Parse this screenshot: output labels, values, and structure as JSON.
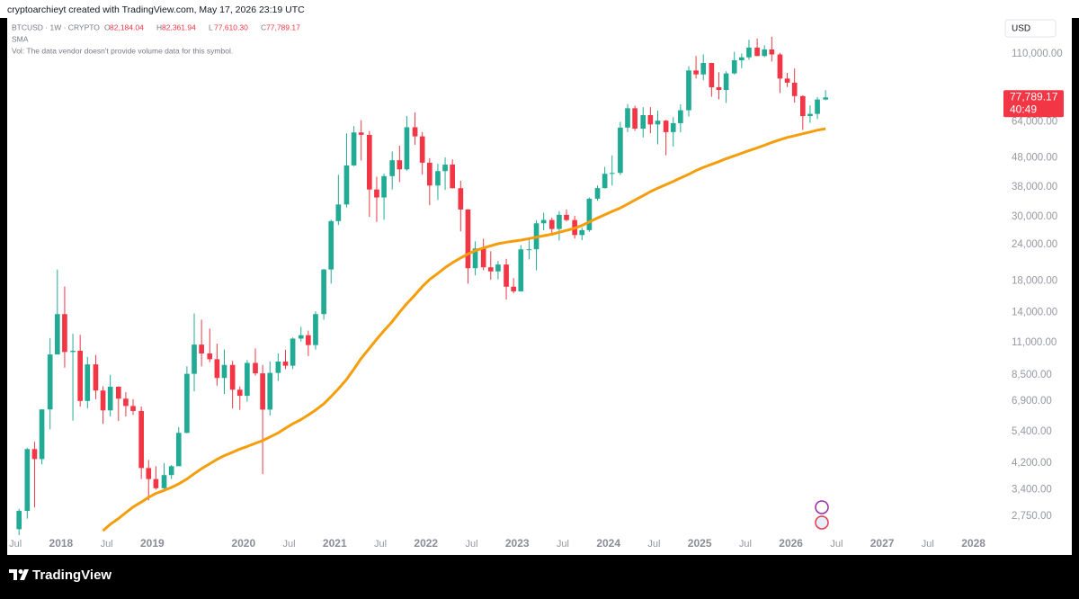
{
  "chart_data": {
    "type": "candlestick",
    "header": "cryptoarchieyt created with TradingView.com, May 17, 2026 23:19 UTC",
    "symbol": "BTCUSD · 1W · CRYPTO",
    "ohlc_legend": [
      {
        "label": "O",
        "value": "82,184.04"
      },
      {
        "label": "H",
        "value": "82,361.94"
      },
      {
        "label": "L",
        "value": "77,610.30"
      },
      {
        "label": "C",
        "value": "77,789.17"
      }
    ],
    "indicator": "SMA",
    "volume_note": "Vol: The data vendor doesn't provide volume data for this symbol.",
    "currency": "USD",
    "last_price": "77,789.17",
    "countdown": "40:49",
    "brand": "TradingView",
    "log_scale": true,
    "grid": false,
    "up_color": "#22ab94",
    "down_color": "#f23645",
    "x": [
      2017.54,
      2017.63,
      2017.71,
      2017.79,
      2017.88,
      2017.96,
      2018.04,
      2018.13,
      2018.21,
      2018.29,
      2018.38,
      2018.46,
      2018.54,
      2018.63,
      2018.71,
      2018.79,
      2018.88,
      2018.96,
      2019.04,
      2019.13,
      2019.21,
      2019.29,
      2019.38,
      2019.46,
      2019.54,
      2019.63,
      2019.71,
      2019.79,
      2019.88,
      2019.96,
      2020.04,
      2020.13,
      2020.21,
      2020.29,
      2020.38,
      2020.46,
      2020.54,
      2020.63,
      2020.71,
      2020.79,
      2020.88,
      2020.96,
      2021.04,
      2021.13,
      2021.21,
      2021.29,
      2021.38,
      2021.46,
      2021.54,
      2021.63,
      2021.71,
      2021.79,
      2021.88,
      2021.96,
      2022.04,
      2022.13,
      2022.21,
      2022.29,
      2022.38,
      2022.46,
      2022.54,
      2022.63,
      2022.71,
      2022.79,
      2022.88,
      2022.96,
      2023.04,
      2023.13,
      2023.21,
      2023.29,
      2023.38,
      2023.46,
      2023.54,
      2023.63,
      2023.71,
      2023.79,
      2023.88,
      2023.96,
      2024.04,
      2024.13,
      2024.21,
      2024.29,
      2024.38,
      2024.46,
      2024.54,
      2024.63,
      2024.71,
      2024.79,
      2024.88,
      2024.96,
      2025.04,
      2025.13,
      2025.21,
      2025.29,
      2025.38,
      2025.46,
      2025.54,
      2025.63,
      2025.71,
      2025.79,
      2025.88,
      2025.96,
      2026.04,
      2026.13,
      2026.21,
      2026.29,
      2026.38
    ],
    "open": [
      2480,
      2870,
      4700,
      4340,
      6450,
      10000,
      13800,
      10200,
      10300,
      6900,
      9240,
      7500,
      6400,
      7730,
      7030,
      6630,
      6370,
      4040,
      3700,
      3440,
      3820,
      4100,
      5350,
      8570,
      10820,
      10080,
      9630,
      8290,
      9200,
      7550,
      7190,
      9350,
      8600,
      6440,
      8630,
      9450,
      9140,
      11350,
      11660,
      10780,
      13800,
      19700,
      28990,
      33100,
      45200,
      58800,
      57700,
      37300,
      35000,
      41500,
      47100,
      43800,
      61300,
      57000,
      46200,
      38500,
      43200,
      45500,
      37700,
      31800,
      19900,
      23300,
      20050,
      19400,
      20500,
      17170,
      16550,
      23140,
      23150,
      28480,
      29250,
      27220,
      30480,
      29230,
      25940,
      26970,
      34660,
      37720,
      42280,
      42580,
      61130,
      71330,
      60640,
      67530,
      62680,
      64620,
      58970,
      63330,
      70220,
      96450,
      93430,
      102400,
      84350,
      82550,
      94200,
      104600,
      107100,
      115750,
      108250,
      114050,
      109600,
      90400,
      87500,
      78600,
      67000,
      68200,
      76500
    ],
    "high": [
      2920,
      4750,
      4980,
      6450,
      11400,
      19700,
      17200,
      11800,
      11700,
      9800,
      9960,
      7760,
      8500,
      7760,
      7400,
      7000,
      6600,
      4310,
      4100,
      4200,
      4140,
      5600,
      9100,
      13880,
      13200,
      12300,
      10900,
      10400,
      9500,
      7750,
      9570,
      10500,
      9200,
      9460,
      10080,
      10380,
      11450,
      12470,
      12100,
      14100,
      19800,
      29300,
      41950,
      58350,
      61800,
      64850,
      59500,
      41300,
      42300,
      50500,
      52900,
      67000,
      69000,
      59000,
      47900,
      45800,
      48200,
      47400,
      40000,
      31900,
      24650,
      25200,
      22800,
      21100,
      21450,
      18400,
      23950,
      25250,
      29200,
      31000,
      29800,
      31400,
      31800,
      30200,
      27500,
      35000,
      38500,
      44700,
      48950,
      64000,
      73800,
      72800,
      71950,
      71950,
      70000,
      65000,
      66500,
      73600,
      99800,
      108300,
      109600,
      102500,
      95000,
      95800,
      111900,
      110500,
      123200,
      124450,
      117900,
      126200,
      111000,
      94600,
      97900,
      79000,
      73000,
      78000,
      82400
    ],
    "low": [
      1840,
      2700,
      2950,
      4160,
      5500,
      10000,
      9000,
      5900,
      6600,
      6500,
      7000,
      5750,
      6100,
      5880,
      6100,
      6170,
      3700,
      3120,
      3400,
      3390,
      3700,
      4100,
      5330,
      7450,
      9100,
      9400,
      7800,
      7300,
      6500,
      6430,
      6860,
      8450,
      3850,
      6150,
      8100,
      8900,
      8900,
      11100,
      9870,
      10400,
      13200,
      17600,
      28100,
      32300,
      44950,
      47000,
      30000,
      28800,
      29300,
      37300,
      39600,
      43300,
      53300,
      42000,
      32900,
      34300,
      37200,
      37600,
      26700,
      17600,
      18800,
      19600,
      18150,
      18200,
      15500,
      16300,
      16500,
      21350,
      19550,
      26950,
      25800,
      24800,
      28900,
      25200,
      24900,
      26600,
      34100,
      37600,
      38500,
      41900,
      59000,
      59600,
      56500,
      58400,
      53500,
      49000,
      52550,
      58900,
      66800,
      90500,
      89200,
      78200,
      76600,
      74400,
      93400,
      98200,
      105100,
      108000,
      107300,
      103500,
      80600,
      84500,
      74600,
      60000,
      63500,
      65500,
      76000
    ],
    "close": [
      2870,
      4700,
      4340,
      6450,
      10000,
      13800,
      10200,
      10300,
      6900,
      9240,
      7500,
      6400,
      7730,
      7030,
      6630,
      6370,
      4040,
      3700,
      3440,
      3820,
      4100,
      5350,
      8570,
      10820,
      10080,
      9630,
      8290,
      9200,
      7550,
      7190,
      9350,
      8600,
      6440,
      8630,
      9450,
      9140,
      11350,
      11660,
      10780,
      13800,
      19700,
      28990,
      33100,
      45200,
      58800,
      57700,
      37300,
      35000,
      41500,
      47100,
      43800,
      61300,
      57000,
      46200,
      38500,
      43200,
      45500,
      37700,
      31800,
      19900,
      23300,
      20050,
      19400,
      20500,
      17170,
      16550,
      23140,
      23150,
      28480,
      29250,
      27220,
      30480,
      29230,
      25940,
      26970,
      34660,
      37720,
      42280,
      42580,
      61130,
      71330,
      60640,
      67530,
      62680,
      64620,
      58970,
      63330,
      70220,
      96450,
      93430,
      102400,
      84350,
      82550,
      94200,
      104600,
      107100,
      115750,
      108250,
      114050,
      109600,
      90400,
      87500,
      78600,
      67000,
      68200,
      76500,
      77789.17
    ],
    "sma": {
      "name": "SMA",
      "color": "#f59d0a",
      "values": [
        null,
        null,
        null,
        null,
        null,
        null,
        null,
        null,
        null,
        null,
        null,
        2450,
        2580,
        2700,
        2830,
        2960,
        3080,
        3200,
        3300,
        3380,
        3460,
        3560,
        3700,
        3860,
        4020,
        4180,
        4330,
        4460,
        4580,
        4700,
        4800,
        4920,
        5030,
        5180,
        5350,
        5550,
        5750,
        5950,
        6170,
        6420,
        6750,
        7150,
        7600,
        8200,
        8900,
        9700,
        10500,
        11300,
        12100,
        13000,
        14000,
        15000,
        16100,
        17200,
        18200,
        19100,
        20000,
        20800,
        21600,
        22300,
        22900,
        23400,
        23800,
        24200,
        24500,
        24700,
        24900,
        25200,
        25500,
        25800,
        26100,
        26500,
        26900,
        27400,
        28000,
        28800,
        29700,
        30500,
        31300,
        32200,
        33200,
        34300,
        35500,
        36700,
        37700,
        38800,
        39800,
        40900,
        42100,
        43400,
        44500,
        45600,
        46600,
        47700,
        48800,
        49800,
        50900,
        52000,
        53100,
        54300,
        55500,
        56500,
        57300,
        58200,
        59000,
        59900,
        60600
      ]
    },
    "xlim": [
      2017.41,
      2028.29
    ],
    "ylim": [
      2365,
      146600
    ],
    "xticks": [
      {
        "value": 2017.5,
        "label": "Jul"
      },
      2018,
      {
        "value": 2018.5,
        "label": "Jul"
      },
      2019,
      2020,
      {
        "value": 2020.5,
        "label": "Jul"
      },
      2021,
      {
        "value": 2021.5,
        "label": "Jul"
      },
      2022,
      {
        "value": 2022.5,
        "label": "Jul"
      },
      2023,
      {
        "value": 2023.5,
        "label": "Jul"
      },
      2024,
      {
        "value": 2024.5,
        "label": "Jul"
      },
      2025,
      {
        "value": 2025.5,
        "label": "Jul"
      },
      2026,
      {
        "value": 2026.5,
        "label": "Jul"
      },
      2027,
      {
        "value": 2027.5,
        "label": "Jul"
      },
      2028
    ],
    "yticks": [
      {
        "value": 110000,
        "label": "110,000.00"
      },
      {
        "value": 64000,
        "label": "64,000.00"
      },
      {
        "value": 48000,
        "label": "48,000.00"
      },
      {
        "value": 38000,
        "label": "38,000.00"
      },
      {
        "value": 30000,
        "label": "30,000.00"
      },
      {
        "value": 24000,
        "label": "24,000.00"
      },
      {
        "value": 18000,
        "label": "18,000.00"
      },
      {
        "value": 14000,
        "label": "14,000.00"
      },
      {
        "value": 11000,
        "label": "11,000.00"
      },
      {
        "value": 8500,
        "label": "8,500.00"
      },
      {
        "value": 6900,
        "label": "6,900.00"
      },
      {
        "value": 5400,
        "label": "5,400.00"
      },
      {
        "value": 4200,
        "label": "4,200.00"
      },
      {
        "value": 3400,
        "label": "3,400.00"
      },
      {
        "value": 2750,
        "label": "2,750.00"
      }
    ]
  }
}
